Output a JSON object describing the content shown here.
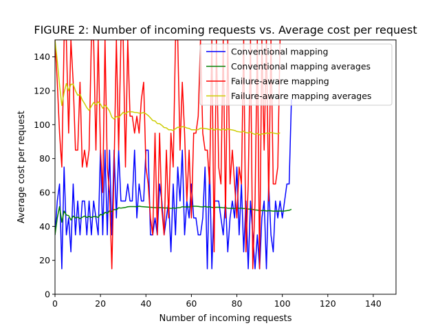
{
  "chart_data": {
    "type": "line",
    "title": "FIGURE 2: Number of incoming requests vs. Average cost per request",
    "xlabel": "Number of incoming requests",
    "ylabel": "Average cost per request",
    "xlim": [
      0,
      150
    ],
    "ylim": [
      0,
      150
    ],
    "xticks": [
      0,
      20,
      40,
      60,
      80,
      100,
      120,
      140
    ],
    "yticks": [
      0,
      20,
      40,
      60,
      80,
      100,
      120,
      140
    ],
    "grid": false,
    "legend_position": "top-right",
    "series": [
      {
        "name": "Conventional mapping",
        "color": "#0000ff",
        "y": [
          35,
          55,
          65,
          15,
          75,
          35,
          45,
          25,
          65,
          35,
          55,
          35,
          55,
          55,
          35,
          55,
          35,
          55,
          45,
          35,
          85,
          35,
          85,
          35,
          85,
          35,
          85,
          45,
          85,
          55,
          55,
          55,
          65,
          55,
          55,
          85,
          45,
          65,
          55,
          55,
          85,
          85,
          35,
          35,
          45,
          35,
          65,
          55,
          35,
          45,
          55,
          25,
          65,
          35,
          75,
          55,
          85,
          35,
          55,
          45,
          65,
          45,
          45,
          35,
          35,
          45,
          75,
          15,
          75,
          15,
          55,
          55,
          55,
          45,
          35,
          55,
          25,
          45,
          55,
          45,
          75,
          35,
          65,
          25,
          55,
          15,
          55,
          35,
          15,
          35,
          15,
          45,
          55,
          15,
          65,
          35,
          25,
          55,
          45,
          55,
          45,
          55,
          65,
          65,
          115
        ]
      },
      {
        "name": "Conventional mapping averages",
        "color": "#008000",
        "y": [
          35,
          45,
          51.7,
          42.5,
          49,
          46.7,
          46.4,
          43.8,
          46.1,
          45,
          45.5,
          44.6,
          45.4,
          46.1,
          45.3,
          45.9,
          45.3,
          45.8,
          45.8,
          45.3,
          47.1,
          46.6,
          48.3,
          47.7,
          49.2,
          48.7,
          50,
          49.8,
          51,
          50.8,
          51,
          51.2,
          51.6,
          51.7,
          51.7,
          51.7,
          51.6,
          51.9,
          51.7,
          51.6,
          51.5,
          51.4,
          51.3,
          51.2,
          51.1,
          51,
          51.1,
          51.1,
          50.9,
          50.9,
          50.9,
          50.6,
          50.9,
          50.7,
          51,
          51.1,
          51.6,
          51.5,
          51.5,
          51.5,
          51.8,
          51.9,
          51.9,
          51.8,
          51.6,
          51.5,
          51.8,
          51.4,
          51.6,
          51.2,
          51.2,
          51.3,
          51.3,
          51.2,
          51,
          51.1,
          50.7,
          50.7,
          50.7,
          50.6,
          50.9,
          50.7,
          50.8,
          50.5,
          50.6,
          50.2,
          50.2,
          50,
          49.7,
          49.6,
          49.3,
          49.3,
          49.4,
          49.1,
          49.3,
          49.2,
          49,
          49.1,
          49,
          49.1,
          49,
          49.1,
          49.3,
          49.5,
          50.1
        ]
      },
      {
        "name": "Failure-aware mapping",
        "color": "#ff0000",
        "y": [
          150,
          125,
          95,
          75,
          150,
          150,
          95,
          150,
          125,
          85,
          85,
          125,
          75,
          85,
          75,
          85,
          150,
          150,
          85,
          150,
          85,
          60,
          150,
          75,
          60,
          15,
          75,
          150,
          85,
          150,
          150,
          75,
          150,
          105,
          105,
          95,
          105,
          95,
          115,
          125,
          75,
          65,
          45,
          35,
          95,
          35,
          95,
          50,
          35,
          85,
          45,
          95,
          75,
          150,
          150,
          85,
          125,
          95,
          55,
          85,
          45,
          95,
          95,
          105,
          150,
          95,
          85,
          85,
          65,
          150,
          25,
          150,
          75,
          65,
          150,
          45,
          150,
          65,
          85,
          65,
          45,
          75,
          65,
          150,
          25,
          65,
          150,
          15,
          55,
          150,
          15,
          150,
          85,
          150,
          55,
          150,
          65,
          65,
          75,
          150
        ]
      },
      {
        "name": "Failure-aware mapping averages",
        "color": "#cccc00",
        "y": [
          150,
          137.5,
          123.3,
          111.3,
          119,
          124.2,
          120,
          123.8,
          123.9,
          120,
          117.3,
          117.9,
          114.6,
          112.5,
          110,
          108.4,
          110.9,
          113.1,
          111.6,
          113.5,
          112.1,
          109.7,
          111.5,
          110,
          108,
          104.4,
          103.3,
          104.9,
          104.2,
          105.8,
          107.3,
          106.3,
          107.6,
          107.6,
          107.6,
          107.2,
          107.2,
          106.8,
          106.8,
          107.2,
          106.4,
          105.4,
          104,
          102.4,
          102.2,
          100.7,
          100.6,
          99.6,
          98.3,
          98.1,
          97,
          97,
          96.6,
          97.6,
          98.5,
          98.3,
          98.8,
          98.7,
          98,
          97.8,
          97,
          97,
          97,
          97.1,
          97.9,
          97.9,
          97.7,
          97.5,
          97.1,
          97.8,
          96.8,
          97.5,
          97.2,
          96.8,
          97.5,
          96.8,
          97.5,
          97.1,
          96.9,
          96.6,
          96,
          95.8,
          95.6,
          96.2,
          95.3,
          95.1,
          95.7,
          94.8,
          94.3,
          94.9,
          94,
          94.6,
          94.5,
          95.1,
          94.8,
          95.4,
          95.1,
          94.8,
          94.6,
          95.2
        ]
      }
    ]
  }
}
